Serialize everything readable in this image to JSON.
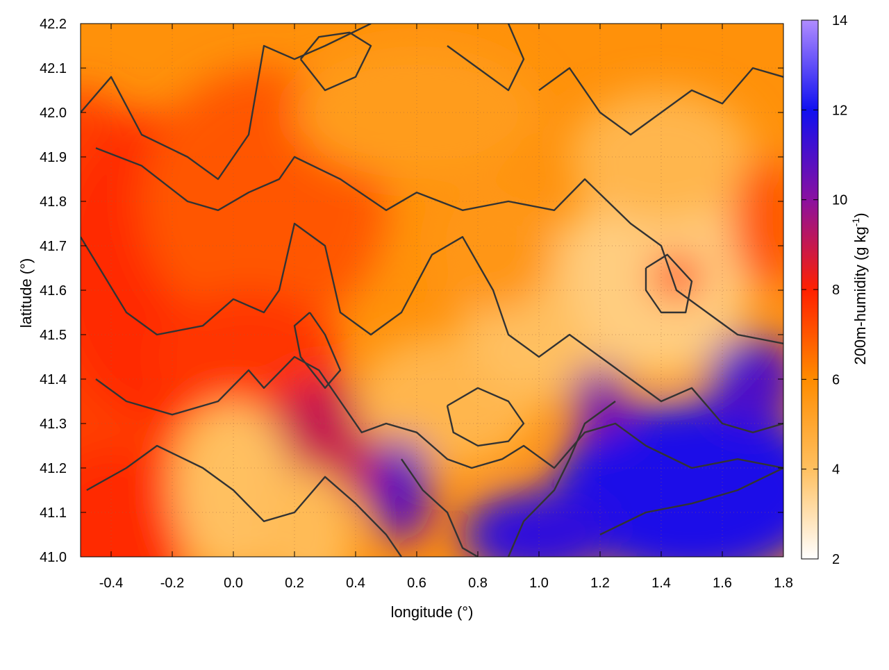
{
  "chart_data": {
    "type": "heatmap",
    "xlabel": "longitude (°)",
    "ylabel": "latitude (°)",
    "colorbar_label": "200m-humidity (g kg-1)",
    "colorbar_label_main": "200m-humidity (g kg",
    "colorbar_label_sup": "-1",
    "colorbar_label_close": ")",
    "xlim": [
      -0.5,
      1.8
    ],
    "ylim": [
      41.0,
      42.2
    ],
    "clim": [
      2,
      14
    ],
    "x_ticks": [
      -0.4,
      -0.2,
      0.0,
      0.2,
      0.4,
      0.6,
      0.8,
      1.0,
      1.2,
      1.4,
      1.6,
      1.8
    ],
    "x_tick_labels": [
      "-0.4",
      "-0.2",
      "0.0",
      "0.2",
      "0.4",
      "0.6",
      "0.8",
      "1.0",
      "1.2",
      "1.4",
      "1.6",
      "1.8"
    ],
    "y_ticks": [
      41.0,
      41.1,
      41.2,
      41.3,
      41.4,
      41.5,
      41.6,
      41.7,
      41.8,
      41.9,
      42.0,
      42.1,
      42.2
    ],
    "y_tick_labels": [
      "41.0",
      "41.1",
      "41.2",
      "41.3",
      "41.4",
      "41.5",
      "41.6",
      "41.7",
      "41.8",
      "41.9",
      "42.0",
      "42.1",
      "42.2"
    ],
    "colorbar_ticks": [
      2,
      4,
      6,
      8,
      10,
      12,
      14
    ],
    "colorbar_tick_labels": [
      "2",
      "4",
      "6",
      "8",
      "10",
      "12",
      "14"
    ],
    "colormap": [
      {
        "value": 2,
        "color": "#ffffff"
      },
      {
        "value": 4,
        "color": "#ffc060"
      },
      {
        "value": 6,
        "color": "#ff8c00"
      },
      {
        "value": 8,
        "color": "#ff2000"
      },
      {
        "value": 10,
        "color": "#8a10a0"
      },
      {
        "value": 12,
        "color": "#1010f0"
      },
      {
        "value": 14,
        "color": "#b08cff"
      }
    ],
    "grid": true,
    "contour_color": "#333333",
    "regions": [
      {
        "x": -0.5,
        "y": 41.5,
        "rx": 0.35,
        "ry": 0.55,
        "value": 7.4
      },
      {
        "x": -0.25,
        "y": 41.65,
        "rx": 0.35,
        "ry": 0.35,
        "value": 7.8
      },
      {
        "x": 0.1,
        "y": 41.8,
        "rx": 0.4,
        "ry": 0.3,
        "value": 7.0
      },
      {
        "x": 0.05,
        "y": 41.45,
        "rx": 0.3,
        "ry": 0.15,
        "value": 7.6
      },
      {
        "x": 0.3,
        "y": 41.25,
        "rx": 0.2,
        "ry": 0.15,
        "value": 9.0
      },
      {
        "x": -0.4,
        "y": 41.05,
        "rx": 0.25,
        "ry": 0.2,
        "value": 7.8
      },
      {
        "x": 0.0,
        "y": 41.15,
        "rx": 0.2,
        "ry": 0.2,
        "value": 4.0
      },
      {
        "x": 0.25,
        "y": 41.05,
        "rx": 0.15,
        "ry": 0.15,
        "value": 4.2
      },
      {
        "x": 0.7,
        "y": 41.35,
        "rx": 0.3,
        "ry": 0.15,
        "value": 4.4
      },
      {
        "x": 1.05,
        "y": 41.55,
        "rx": 0.3,
        "ry": 0.2,
        "value": 4.0
      },
      {
        "x": 1.4,
        "y": 41.65,
        "rx": 0.3,
        "ry": 0.25,
        "value": 3.6
      },
      {
        "x": 1.4,
        "y": 41.9,
        "rx": 0.3,
        "ry": 0.15,
        "value": 4.4
      },
      {
        "x": 0.6,
        "y": 42.0,
        "rx": 0.4,
        "ry": 0.15,
        "value": 5.4
      },
      {
        "x": 0.85,
        "y": 41.7,
        "rx": 0.2,
        "ry": 0.15,
        "value": 5.6
      },
      {
        "x": 1.45,
        "y": 41.63,
        "rx": 0.08,
        "ry": 0.05,
        "value": 7.6
      },
      {
        "x": 1.75,
        "y": 41.75,
        "rx": 0.12,
        "ry": 0.15,
        "value": 7.0
      },
      {
        "x": 0.55,
        "y": 41.15,
        "rx": 0.1,
        "ry": 0.12,
        "value": 10.8
      },
      {
        "x": 1.5,
        "y": 41.15,
        "rx": 0.45,
        "ry": 0.2,
        "value": 11.8
      },
      {
        "x": 1.0,
        "y": 41.05,
        "rx": 0.25,
        "ry": 0.1,
        "value": 11.5
      },
      {
        "x": 1.7,
        "y": 41.4,
        "rx": 0.15,
        "ry": 0.1,
        "value": 11.0
      },
      {
        "x": 1.2,
        "y": 41.35,
        "rx": 0.1,
        "ry": 0.08,
        "value": 10.2
      }
    ],
    "contours": [
      [
        [
          -0.5,
          42.0
        ],
        [
          -0.4,
          42.08
        ],
        [
          -0.3,
          41.95
        ],
        [
          -0.15,
          41.9
        ],
        [
          -0.05,
          41.85
        ],
        [
          0.05,
          41.95
        ],
        [
          0.1,
          42.15
        ],
        [
          0.2,
          42.12
        ],
        [
          0.3,
          42.15
        ],
        [
          0.45,
          42.2
        ]
      ],
      [
        [
          -0.45,
          41.92
        ],
        [
          -0.3,
          41.88
        ],
        [
          -0.15,
          41.8
        ],
        [
          -0.05,
          41.78
        ],
        [
          0.05,
          41.82
        ],
        [
          0.15,
          41.85
        ],
        [
          0.2,
          41.9
        ],
        [
          0.35,
          41.85
        ],
        [
          0.5,
          41.78
        ],
        [
          0.6,
          41.82
        ],
        [
          0.75,
          41.78
        ],
        [
          0.9,
          41.8
        ],
        [
          1.05,
          41.78
        ],
        [
          1.15,
          41.85
        ],
        [
          1.3,
          41.75
        ],
        [
          1.4,
          41.7
        ],
        [
          1.45,
          41.6
        ],
        [
          1.55,
          41.55
        ],
        [
          1.65,
          41.5
        ],
        [
          1.8,
          41.48
        ]
      ],
      [
        [
          -0.5,
          41.72
        ],
        [
          -0.35,
          41.55
        ],
        [
          -0.25,
          41.5
        ],
        [
          -0.1,
          41.52
        ],
        [
          0.0,
          41.58
        ],
        [
          0.1,
          41.55
        ],
        [
          0.15,
          41.6
        ],
        [
          0.2,
          41.75
        ],
        [
          0.3,
          41.7
        ],
        [
          0.35,
          41.55
        ],
        [
          0.45,
          41.5
        ],
        [
          0.55,
          41.55
        ],
        [
          0.65,
          41.68
        ],
        [
          0.75,
          41.72
        ],
        [
          0.85,
          41.6
        ],
        [
          0.9,
          41.5
        ],
        [
          1.0,
          41.45
        ],
        [
          1.1,
          41.5
        ],
        [
          1.2,
          41.45
        ],
        [
          1.3,
          41.4
        ],
        [
          1.4,
          41.35
        ],
        [
          1.5,
          41.38
        ],
        [
          1.6,
          41.3
        ],
        [
          1.7,
          41.28
        ],
        [
          1.8,
          41.3
        ]
      ],
      [
        [
          -0.45,
          41.4
        ],
        [
          -0.35,
          41.35
        ],
        [
          -0.2,
          41.32
        ],
        [
          -0.05,
          41.35
        ],
        [
          0.05,
          41.42
        ],
        [
          0.1,
          41.38
        ],
        [
          0.2,
          41.45
        ],
        [
          0.28,
          41.42
        ],
        [
          0.35,
          41.35
        ],
        [
          0.42,
          41.28
        ],
        [
          0.5,
          41.3
        ],
        [
          0.6,
          41.28
        ],
        [
          0.7,
          41.22
        ],
        [
          0.78,
          41.2
        ],
        [
          0.88,
          41.22
        ],
        [
          0.95,
          41.25
        ],
        [
          1.05,
          41.2
        ],
        [
          1.15,
          41.28
        ],
        [
          1.25,
          41.3
        ],
        [
          1.35,
          41.25
        ],
        [
          1.5,
          41.2
        ],
        [
          1.65,
          41.22
        ],
        [
          1.8,
          41.2
        ]
      ],
      [
        [
          -0.48,
          41.15
        ],
        [
          -0.35,
          41.2
        ],
        [
          -0.25,
          41.25
        ],
        [
          -0.1,
          41.2
        ],
        [
          0.0,
          41.15
        ],
        [
          0.1,
          41.08
        ],
        [
          0.2,
          41.1
        ],
        [
          0.3,
          41.18
        ],
        [
          0.4,
          41.12
        ],
        [
          0.5,
          41.05
        ],
        [
          0.55,
          41.0
        ]
      ],
      [
        [
          0.55,
          41.22
        ],
        [
          0.62,
          41.15
        ],
        [
          0.7,
          41.1
        ],
        [
          0.75,
          41.02
        ],
        [
          0.8,
          41.0
        ]
      ],
      [
        [
          0.9,
          41.0
        ],
        [
          0.95,
          41.08
        ],
        [
          1.05,
          41.15
        ],
        [
          1.1,
          41.22
        ],
        [
          1.15,
          41.3
        ],
        [
          1.25,
          41.35
        ]
      ],
      [
        [
          1.2,
          41.05
        ],
        [
          1.35,
          41.1
        ],
        [
          1.5,
          41.12
        ],
        [
          1.65,
          41.15
        ],
        [
          1.8,
          41.2
        ]
      ],
      [
        [
          0.7,
          41.34
        ],
        [
          0.8,
          41.38
        ],
        [
          0.9,
          41.35
        ],
        [
          0.95,
          41.3
        ],
        [
          0.9,
          41.26
        ],
        [
          0.8,
          41.25
        ],
        [
          0.72,
          41.28
        ],
        [
          0.7,
          41.34
        ]
      ],
      [
        [
          0.22,
          42.12
        ],
        [
          0.3,
          42.05
        ],
        [
          0.4,
          42.08
        ],
        [
          0.45,
          42.15
        ],
        [
          0.38,
          42.18
        ],
        [
          0.28,
          42.17
        ],
        [
          0.22,
          42.12
        ]
      ],
      [
        [
          0.7,
          42.15
        ],
        [
          0.8,
          42.1
        ],
        [
          0.9,
          42.05
        ],
        [
          0.95,
          42.12
        ],
        [
          0.9,
          42.2
        ]
      ],
      [
        [
          1.0,
          42.05
        ],
        [
          1.1,
          42.1
        ],
        [
          1.2,
          42.0
        ],
        [
          1.3,
          41.95
        ],
        [
          1.4,
          42.0
        ],
        [
          1.5,
          42.05
        ],
        [
          1.6,
          42.02
        ],
        [
          1.7,
          42.1
        ],
        [
          1.8,
          42.08
        ]
      ],
      [
        [
          1.35,
          41.65
        ],
        [
          1.42,
          41.68
        ],
        [
          1.5,
          41.62
        ],
        [
          1.48,
          41.55
        ],
        [
          1.4,
          41.55
        ],
        [
          1.35,
          41.6
        ],
        [
          1.35,
          41.65
        ]
      ],
      [
        [
          0.25,
          41.55
        ],
        [
          0.3,
          41.5
        ],
        [
          0.35,
          41.42
        ],
        [
          0.3,
          41.38
        ],
        [
          0.22,
          41.45
        ],
        [
          0.2,
          41.52
        ],
        [
          0.25,
          41.55
        ]
      ]
    ]
  }
}
